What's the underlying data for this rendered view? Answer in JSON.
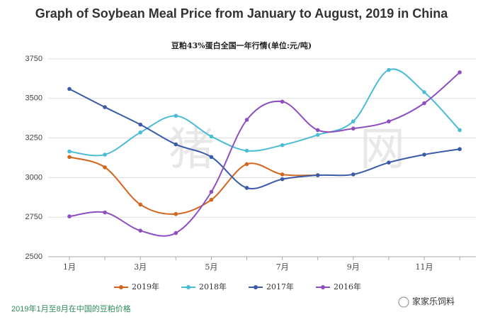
{
  "chart_data": {
    "type": "line",
    "title": "Graph of Soybean Meal Price from January to August, 2019 in China",
    "subtitle": "豆粕43%蛋白全国一年行情(单位:元/吨)",
    "categories": [
      "1月",
      null,
      "3月",
      null,
      "5月",
      null,
      "7月",
      null,
      "9月",
      null,
      "11月",
      null
    ],
    "series": [
      {
        "name": "2019年",
        "color": "#d4651e",
        "values": [
          3130,
          3065,
          2830,
          2770,
          2860,
          3085,
          3020,
          3015,
          null,
          null,
          null,
          null
        ]
      },
      {
        "name": "2018年",
        "color": "#4bbcd6",
        "values": [
          3165,
          3145,
          3285,
          3390,
          3260,
          3170,
          3205,
          3270,
          3355,
          3680,
          3540,
          3300
        ]
      },
      {
        "name": "2017年",
        "color": "#3a5ba8",
        "values": [
          3560,
          3445,
          3335,
          3210,
          3130,
          2935,
          2990,
          3015,
          3020,
          3095,
          3145,
          3180
        ]
      },
      {
        "name": "2016年",
        "color": "#8e4fc0",
        "values": [
          2755,
          2780,
          2665,
          2650,
          2910,
          3365,
          3480,
          3300,
          3310,
          3355,
          3470,
          3665
        ]
      }
    ],
    "ylim": [
      2500,
      3750
    ],
    "yticks": [
      2500,
      2750,
      3000,
      3250,
      3500,
      3750
    ],
    "grid": true,
    "legend": "bottom",
    "smooth": true,
    "watermark": [
      "猪",
      "网"
    ]
  },
  "caption": "2019年1月至8月在中国的豆粕价格",
  "brand": "家家乐饲料"
}
